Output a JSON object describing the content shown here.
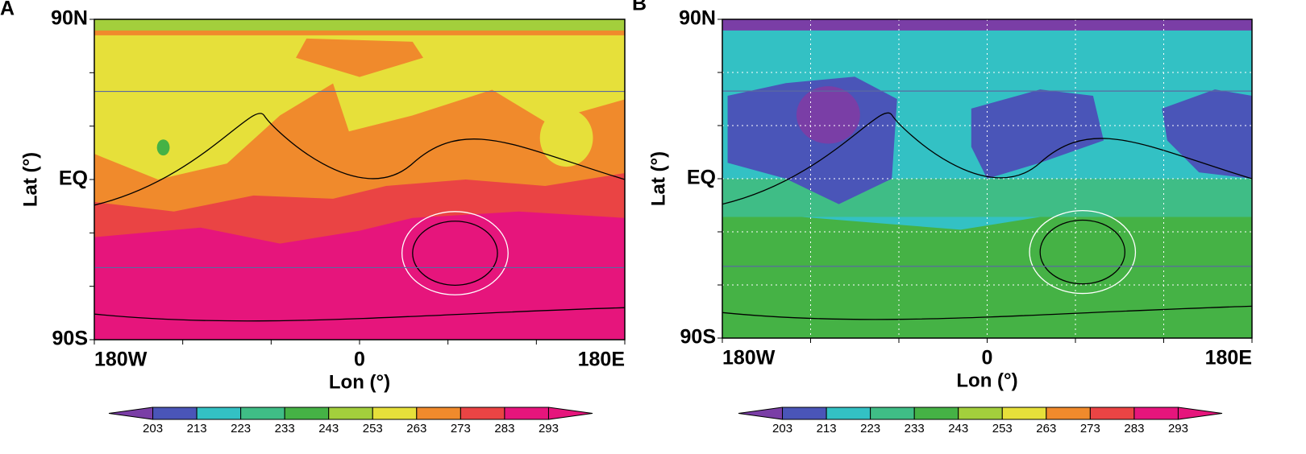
{
  "panels": [
    {
      "label": "A",
      "yticks": [
        "90N",
        "EQ",
        "90S"
      ],
      "xticks": [
        "180W",
        "0",
        "180E"
      ],
      "ylabel": "Lat (°)",
      "xlabel": "Lon (°)",
      "colorbar": {
        "levels": [
          203,
          213,
          223,
          233,
          243,
          253,
          263,
          273,
          283,
          293
        ],
        "colors": [
          "#7a3ea6",
          "#4a55b8",
          "#33c1c4",
          "#3fbd86",
          "#45b245",
          "#a3cf3c",
          "#e6e03a",
          "#f08a2c",
          "#ea4444",
          "#e6157c",
          "#e6157c"
        ]
      }
    },
    {
      "label": "B",
      "yticks": [
        "90N",
        "EQ",
        "90S"
      ],
      "xticks": [
        "180W",
        "0",
        "180E"
      ],
      "ylabel": "Lat (°)",
      "xlabel": "Lon (°)",
      "colorbar": {
        "levels": [
          203,
          213,
          223,
          233,
          243,
          253,
          263,
          273,
          283,
          293
        ],
        "colors": [
          "#7a3ea6",
          "#4a55b8",
          "#33c1c4",
          "#3fbd86",
          "#45b245",
          "#a3cf3c",
          "#e6e03a",
          "#f08a2c",
          "#ea4444",
          "#e6157c",
          "#e6157c"
        ]
      }
    }
  ]
}
